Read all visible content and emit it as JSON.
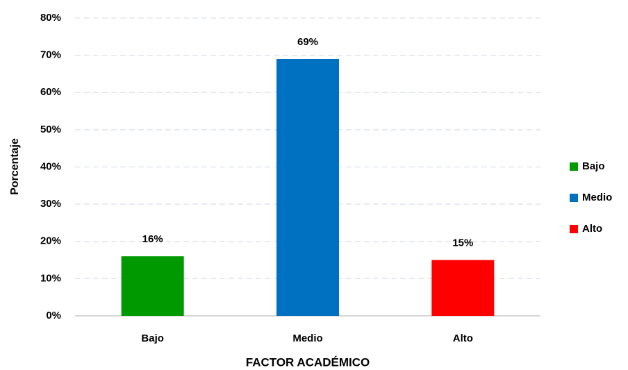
{
  "chart_data": {
    "type": "bar",
    "categories": [
      "Bajo",
      "Medio",
      "Alto"
    ],
    "values": [
      16,
      69,
      15
    ],
    "value_labels": [
      "16%",
      "69%",
      "15%"
    ],
    "colors": [
      "#009900",
      "#0070c0",
      "#ff0000"
    ],
    "x_label": "FACTOR ACADÉMICO",
    "y_label": "Porcentaje",
    "ylim": [
      0,
      80
    ],
    "yticks": [
      {
        "value": 0,
        "label": "0%"
      },
      {
        "value": 10,
        "label": "10%"
      },
      {
        "value": 20,
        "label": "20%"
      },
      {
        "value": 30,
        "label": "30%"
      },
      {
        "value": 40,
        "label": "40%"
      },
      {
        "value": 50,
        "label": "50%"
      },
      {
        "value": 60,
        "label": "60%"
      },
      {
        "value": 70,
        "label": "70%"
      },
      {
        "value": 80,
        "label": "80%"
      }
    ],
    "grid": true,
    "legend": "right"
  }
}
